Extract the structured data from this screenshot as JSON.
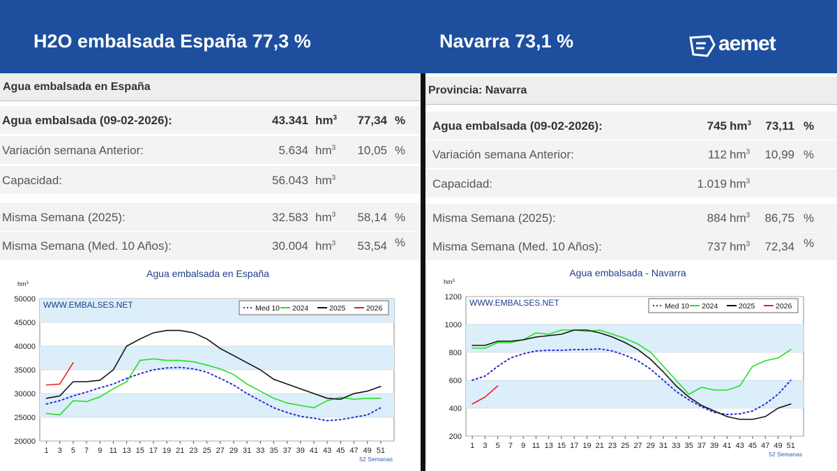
{
  "header": {
    "title_left": "H2O embalsada España 77,3 %",
    "title_right": "Navarra 73,1 %",
    "logo": "aemet"
  },
  "panels": [
    {
      "title": "Agua embalsada en España",
      "rows": [
        {
          "label": "Agua embalsada (09-02-2026):",
          "value": "43.341",
          "unit": "hm",
          "unit_sup": "3",
          "percent": "77,34",
          "percent_sign": "%"
        },
        {
          "label": "Variación semana Anterior:",
          "value": "5.634",
          "unit": "hm",
          "unit_sup": "3",
          "percent": "10,05",
          "percent_sign": "%"
        },
        {
          "label": "Capacidad:",
          "value": "56.043",
          "unit": "hm",
          "unit_sup": "3"
        },
        {
          "label": "Misma Semana (2025):",
          "value": "32.583",
          "unit": "hm",
          "unit_sup": "3",
          "percent": "58,14",
          "percent_sign": "%"
        },
        {
          "label": "Misma Semana (Med. 10 Años):",
          "value": "30.004",
          "unit": "hm",
          "unit_sup": "3",
          "percent": "53,54",
          "percent_sign": "%"
        }
      ]
    },
    {
      "title": "Provincia: Navarra",
      "rows": [
        {
          "label": "Agua embalsada (09-02-2026):",
          "value": "745",
          "unit": "hm",
          "unit_sup": "3",
          "percent": "73,11",
          "percent_sign": "%"
        },
        {
          "label": "Variación semana Anterior:",
          "value": "112",
          "unit": "hm",
          "unit_sup": "3",
          "percent": "10,99",
          "percent_sign": "%"
        },
        {
          "label": "Capacidad:",
          "value": "1.019",
          "unit": "hm",
          "unit_sup": "3"
        },
        {
          "label": "Misma Semana (2025):",
          "value": "884",
          "unit": "hm",
          "unit_sup": "3",
          "percent": "86,75",
          "percent_sign": "%"
        },
        {
          "label": "Misma Semana (Med. 10 Años):",
          "value": "737",
          "unit": "hm",
          "unit_sup": "3",
          "percent": "72,34",
          "percent_sign": "%"
        }
      ]
    }
  ],
  "chart_data": [
    {
      "type": "line",
      "title": "Agua embalsada en España",
      "y_label": "hm",
      "y_label_sup": "3",
      "watermark": "WWW.EMBALSES.NET",
      "x_label": "52 Semanas",
      "x": [
        1,
        3,
        5,
        7,
        9,
        11,
        13,
        15,
        17,
        19,
        21,
        23,
        25,
        27,
        29,
        31,
        33,
        35,
        37,
        39,
        41,
        43,
        45,
        47,
        49,
        51
      ],
      "xlim": [
        0,
        53
      ],
      "xticks": [
        1,
        3,
        5,
        7,
        9,
        11,
        13,
        15,
        17,
        19,
        21,
        23,
        25,
        27,
        29,
        31,
        33,
        35,
        37,
        39,
        41,
        43,
        45,
        47,
        49,
        51
      ],
      "ylim": [
        20000,
        50000
      ],
      "yticks": [
        20000,
        25000,
        30000,
        35000,
        40000,
        45000,
        50000
      ],
      "grid": true,
      "legend": "top-right",
      "series": [
        {
          "name": "Med 10",
          "color": "#2a2ad8",
          "style": "dotted",
          "values": [
            27800,
            28500,
            29500,
            30300,
            31200,
            32000,
            33200,
            34200,
            35000,
            35400,
            35500,
            35200,
            34500,
            33200,
            31800,
            30000,
            28500,
            27000,
            26000,
            25200,
            24800,
            24300,
            24500,
            25000,
            25500,
            27000
          ]
        },
        {
          "name": "2024",
          "color": "#22e022",
          "style": "solid",
          "values": [
            25800,
            25500,
            28500,
            28300,
            29300,
            31000,
            32500,
            37000,
            37300,
            37000,
            37000,
            36700,
            36000,
            35200,
            34000,
            32000,
            30500,
            29000,
            28000,
            27500,
            27000,
            28500,
            29200,
            28800,
            29000,
            29000
          ]
        },
        {
          "name": "2025",
          "color": "#111111",
          "style": "solid",
          "values": [
            29000,
            29500,
            32500,
            32500,
            32800,
            35000,
            40000,
            41500,
            42800,
            43300,
            43300,
            42800,
            41500,
            39500,
            38000,
            36500,
            35000,
            33000,
            32000,
            31000,
            30000,
            29000,
            28800,
            30000,
            30500,
            31500
          ]
        },
        {
          "name": "2026",
          "color": "#e82020",
          "style": "solid",
          "values": [
            31800,
            32000,
            36500,
            null,
            null,
            null,
            null,
            null,
            null,
            null,
            null,
            null,
            null,
            null,
            null,
            null,
            null,
            null,
            null,
            null,
            null,
            null,
            null,
            null,
            null,
            null
          ]
        }
      ]
    },
    {
      "type": "line",
      "title": "Agua embalsada - Navarra",
      "y_label": "hm",
      "y_label_sup": "3",
      "watermark": "WWW.EMBALSES.NET",
      "x_label": "52 Semanas",
      "x": [
        1,
        3,
        5,
        7,
        9,
        11,
        13,
        15,
        17,
        19,
        21,
        23,
        25,
        27,
        29,
        31,
        33,
        35,
        37,
        39,
        41,
        43,
        45,
        47,
        49,
        51
      ],
      "xlim": [
        0,
        53
      ],
      "xticks": [
        1,
        3,
        5,
        7,
        9,
        11,
        13,
        15,
        17,
        19,
        21,
        23,
        25,
        27,
        29,
        31,
        33,
        35,
        37,
        39,
        41,
        43,
        45,
        47,
        49,
        51
      ],
      "ylim": [
        200,
        1200
      ],
      "yticks": [
        200,
        400,
        600,
        800,
        1000,
        1200
      ],
      "grid": true,
      "legend": "top-right",
      "series": [
        {
          "name": "Med 10",
          "color": "#2a2ad8",
          "style": "dotted",
          "values": [
            600,
            630,
            700,
            760,
            790,
            810,
            815,
            815,
            820,
            820,
            825,
            810,
            780,
            740,
            680,
            600,
            520,
            460,
            410,
            370,
            355,
            360,
            380,
            430,
            500,
            600
          ]
        },
        {
          "name": "2024",
          "color": "#22e022",
          "style": "solid",
          "values": [
            830,
            830,
            870,
            870,
            890,
            940,
            930,
            960,
            960,
            950,
            960,
            930,
            900,
            860,
            800,
            700,
            600,
            500,
            550,
            530,
            530,
            560,
            700,
            740,
            760,
            820
          ]
        },
        {
          "name": "2025",
          "color": "#111111",
          "style": "solid",
          "values": [
            850,
            850,
            880,
            880,
            890,
            910,
            920,
            930,
            960,
            960,
            940,
            910,
            870,
            820,
            750,
            660,
            560,
            480,
            420,
            380,
            340,
            320,
            320,
            340,
            400,
            430
          ]
        },
        {
          "name": "2026",
          "color": "#e82020",
          "style": "solid",
          "values": [
            430,
            480,
            560,
            null,
            null,
            null,
            null,
            null,
            null,
            null,
            null,
            null,
            null,
            null,
            null,
            null,
            null,
            null,
            null,
            null,
            null,
            null,
            null,
            null,
            null,
            null
          ]
        }
      ]
    }
  ]
}
